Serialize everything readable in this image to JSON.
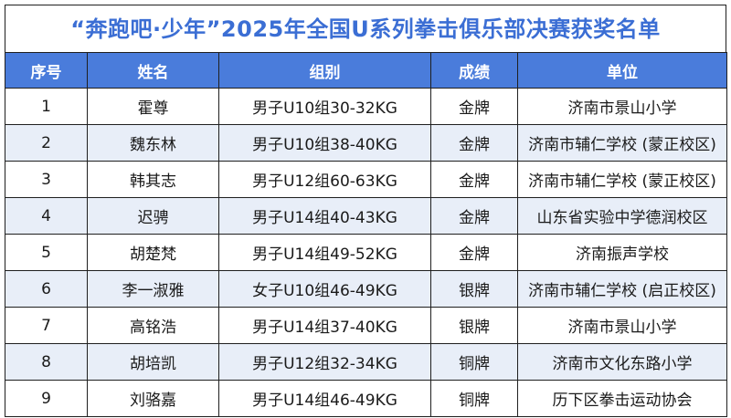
{
  "title": "“奔跑吧·少年”2025年全国U系列拳击俱乐部决赛获奖名单",
  "headers": [
    "序号",
    "姓名",
    "组别",
    "成绩",
    "单位"
  ],
  "rows": [
    {
      "no": "1",
      "name": "霍尊",
      "group": "男子U10组30-32KG",
      "result": "金牌",
      "unit": "济南市景山小学"
    },
    {
      "no": "2",
      "name": "魏东林",
      "group": "男子U10组38-40KG",
      "result": "金牌",
      "unit": "济南市辅仁学校 (蒙正校区)"
    },
    {
      "no": "3",
      "name": "韩其志",
      "group": "男子U12组60-63KG",
      "result": "金牌",
      "unit": "济南市辅仁学校 (蒙正校区)"
    },
    {
      "no": "4",
      "name": "迟骋",
      "group": "男子U14组40-43KG",
      "result": "金牌",
      "unit": "山东省实验中学德润校区"
    },
    {
      "no": "5",
      "name": "胡楚梵",
      "group": "男子U14组49-52KG",
      "result": "金牌",
      "unit": "济南振声学校"
    },
    {
      "no": "6",
      "name": "李一淑雅",
      "group": "女子U10组46-49KG",
      "result": "银牌",
      "unit": "济南市辅仁学校 (启正校区)"
    },
    {
      "no": "7",
      "name": "高铭浩",
      "group": "男子U14组37-40KG",
      "result": "银牌",
      "unit": "济南市景山小学"
    },
    {
      "no": "8",
      "name": "胡培凯",
      "group": "男子U12组32-34KG",
      "result": "铜牌",
      "unit": "济南市文化东路小学"
    },
    {
      "no": "9",
      "name": "刘骆嘉",
      "group": "男子U14组46-49KG",
      "result": "铜牌",
      "unit": "历下区拳击运动协会"
    }
  ],
  "colors": {
    "title": "#3b6ed4",
    "header_bg": "#4a7cdb",
    "header_text": "#ffffff",
    "alt_row_bg": "#e8eef8",
    "border": "#1f1f1f"
  }
}
